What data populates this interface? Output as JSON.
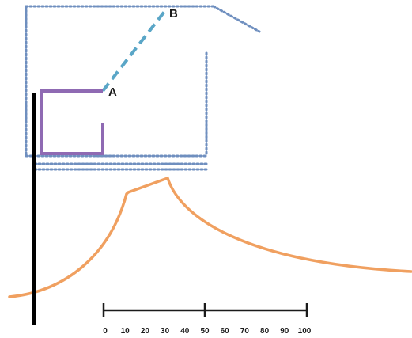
{
  "labels": {
    "point_a": "A",
    "point_b": "B"
  },
  "scale_bar": {
    "ticks": [
      "0",
      "10",
      "20",
      "30",
      "40",
      "50",
      "60",
      "70",
      "80",
      "90",
      "100"
    ],
    "major_ticks": [
      "0",
      "50",
      "100"
    ]
  },
  "colors": {
    "outline": "#6f8fbf",
    "connector": "#5aa6c7",
    "bracket": "#8f6ab3",
    "pole": "#000000",
    "curve": "#f0a060",
    "scale": "#1a1a1a"
  }
}
